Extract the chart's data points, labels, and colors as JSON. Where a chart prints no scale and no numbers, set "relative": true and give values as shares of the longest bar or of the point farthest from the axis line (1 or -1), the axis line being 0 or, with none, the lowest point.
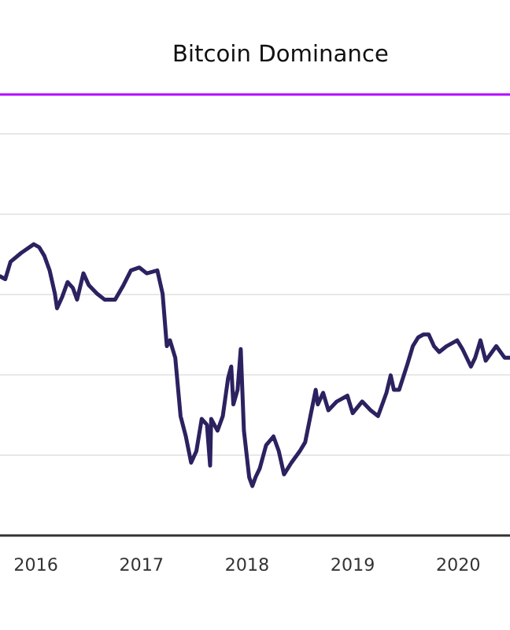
{
  "chart_data": {
    "type": "line",
    "title": "Bitcoin Dominance",
    "relative": true,
    "grid": "y",
    "xlim": [
      2015.66,
      2020.49
    ],
    "xticks": [
      2016,
      2017,
      2018,
      2019,
      2020
    ],
    "series": [
      {
        "color": "#2b2260",
        "x": [
          2015.66,
          2015.71,
          2015.76,
          2015.86,
          2015.98,
          2016.03,
          2016.08,
          2016.13,
          2016.18,
          2016.2,
          2016.25,
          2016.3,
          2016.35,
          2016.39,
          2016.45,
          2016.5,
          2016.58,
          2016.65,
          2016.75,
          2016.83,
          2016.9,
          2016.98,
          2017.05,
          2017.15,
          2017.2,
          2017.24,
          2017.27,
          2017.32,
          2017.37,
          2017.42,
          2017.47,
          2017.52,
          2017.57,
          2017.62,
          2017.65,
          2017.66,
          2017.72,
          2017.77,
          2017.82,
          2017.85,
          2017.87,
          2017.91,
          2017.94,
          2017.97,
          2018.02,
          2018.05,
          2018.08,
          2018.12,
          2018.18,
          2018.25,
          2018.3,
          2018.35,
          2018.42,
          2018.5,
          2018.55,
          2018.6,
          2018.65,
          2018.67,
          2018.72,
          2018.77,
          2018.85,
          2018.95,
          2019.0,
          2019.09,
          2019.17,
          2019.24,
          2019.32,
          2019.36,
          2019.39,
          2019.44,
          2019.52,
          2019.57,
          2019.62,
          2019.67,
          2019.72,
          2019.77,
          2019.82,
          2019.89,
          2019.99,
          2020.04,
          2020.12,
          2020.16,
          2020.21,
          2020.26,
          2020.36,
          2020.44,
          2020.49
        ],
        "values": [
          0.89,
          0.88,
          0.94,
          0.97,
          1.0,
          0.99,
          0.96,
          0.91,
          0.83,
          0.78,
          0.82,
          0.87,
          0.85,
          0.81,
          0.9,
          0.86,
          0.83,
          0.81,
          0.81,
          0.86,
          0.91,
          0.92,
          0.9,
          0.91,
          0.83,
          0.65,
          0.67,
          0.61,
          0.41,
          0.34,
          0.25,
          0.29,
          0.4,
          0.38,
          0.24,
          0.4,
          0.36,
          0.41,
          0.54,
          0.58,
          0.45,
          0.5,
          0.64,
          0.36,
          0.2,
          0.17,
          0.2,
          0.23,
          0.31,
          0.34,
          0.29,
          0.21,
          0.25,
          0.29,
          0.32,
          0.41,
          0.5,
          0.45,
          0.49,
          0.43,
          0.46,
          0.48,
          0.42,
          0.46,
          0.43,
          0.41,
          0.49,
          0.55,
          0.5,
          0.5,
          0.59,
          0.65,
          0.68,
          0.69,
          0.69,
          0.65,
          0.63,
          0.65,
          0.67,
          0.64,
          0.58,
          0.61,
          0.67,
          0.6,
          0.65,
          0.61,
          0.61
        ]
      }
    ]
  }
}
